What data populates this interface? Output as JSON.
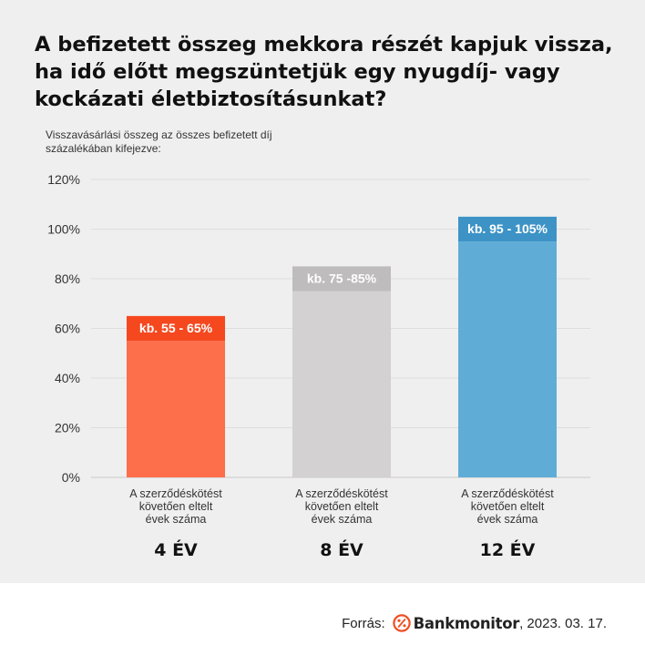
{
  "title": "A befizetett összeg mekkora részét kapjuk vissza, ha idő előtt megszüntetjük egy nyugdíj- vagy kockázati életbiztosításunkat?",
  "subtitle": "Visszavásárlási összeg az összes befizetett díj százalékában kifejezve:",
  "chart_data": {
    "type": "bar",
    "ylim": [
      0,
      120
    ],
    "yticks": [
      0,
      20,
      40,
      60,
      80,
      100,
      120
    ],
    "ytick_suffix": "%",
    "grid": true,
    "categories": [
      "4 ÉV",
      "8 ÉV",
      "12 ÉV"
    ],
    "category_caption": "A szerződéskötést követően eltelt évek száma",
    "values": [
      {
        "low": 55,
        "high": 65
      },
      {
        "low": 75,
        "high": 85
      },
      {
        "low": 95,
        "high": 105
      }
    ],
    "labels": [
      "kb. 55 - 65%",
      "kb. 75 -85%",
      "kb. 95 - 105%"
    ],
    "colors": [
      {
        "body": "#fd6e4a",
        "cap": "#f5481f"
      },
      {
        "body": "#d3d1d1",
        "cap": "#bebcbc"
      },
      {
        "body": "#5fadd6",
        "cap": "#3d93c6"
      }
    ]
  },
  "footer": {
    "source_label": "Forrás:",
    "brand": "Bankmonitor",
    "date": ", 2023. 03. 17.",
    "logo_icon": "percent-circle-icon",
    "logo_color": "#f04e23"
  }
}
